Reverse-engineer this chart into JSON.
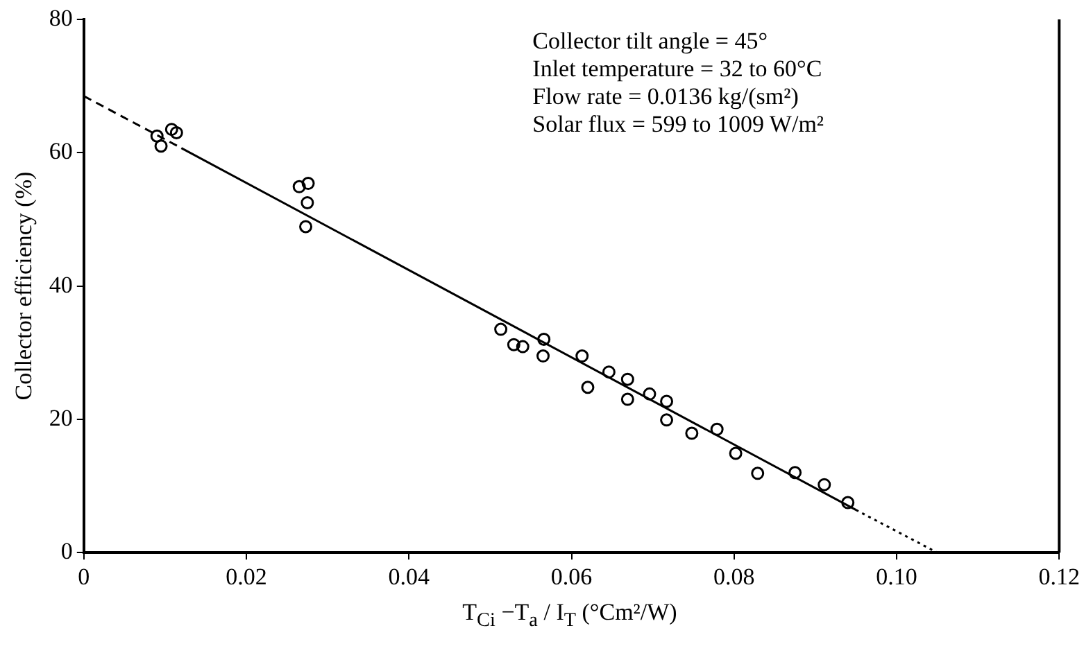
{
  "chart_data": {
    "type": "scatter",
    "xlabel": "T$_{Ci}$ −T$_{a}$ / I$_{T}$   (°Cm²/W)",
    "ylabel": "Collector efficiency (%)",
    "annotations": [
      "Collector tilt angle = 45°",
      "Inlet temperature = 32 to 60°C",
      "Flow rate = 0.0136 kg/(sm²)",
      "Solar flux = 599 to 1009 W/m²"
    ],
    "xlim": [
      0,
      0.12
    ],
    "xticks": [
      0,
      0.02,
      0.04,
      0.06,
      0.08,
      {
        "value": 0.1,
        "label": "0.10"
      },
      0.12
    ],
    "ylim": [
      0,
      80
    ],
    "yticks": [
      0,
      20,
      40,
      60,
      80
    ],
    "grid": false,
    "marker": "circle",
    "series": [
      {
        "color": "#000000",
        "x": [
          0.009,
          0.0095,
          0.0108,
          0.0114,
          0.0265,
          0.0276,
          0.0275,
          0.0273,
          0.0513,
          0.0529,
          0.054,
          0.0566,
          0.0565,
          0.0613,
          0.062,
          0.0646,
          0.0669,
          0.0669,
          0.0696,
          0.0717,
          0.0717,
          0.0748,
          0.0779,
          0.0802,
          0.0829,
          0.0875,
          0.0911,
          0.094
        ],
        "values": [
          62.5,
          61,
          63.5,
          63,
          54.9,
          55.4,
          52.5,
          48.9,
          33.5,
          31.2,
          30.9,
          32,
          29.5,
          29.5,
          24.8,
          27.1,
          26,
          23,
          23.8,
          22.7,
          19.9,
          17.9,
          18.5,
          14.9,
          11.9,
          12,
          10.2,
          7.5
        ]
      },
      {
        "type": "line",
        "color": "#000000",
        "line_style": "dashed",
        "marker": "none",
        "x": [
          0,
          0.012
        ],
        "values": [
          68.5,
          60.7
        ]
      },
      {
        "type": "line",
        "color": "#000000",
        "line_style": "solid",
        "marker": "none",
        "x": [
          0.012,
          0.095
        ],
        "values": [
          60.7,
          6.4
        ]
      },
      {
        "type": "line",
        "color": "#000000",
        "line_style": "dotted",
        "marker": "none",
        "x": [
          0.095,
          0.105
        ],
        "values": [
          6.4,
          0
        ]
      }
    ]
  }
}
